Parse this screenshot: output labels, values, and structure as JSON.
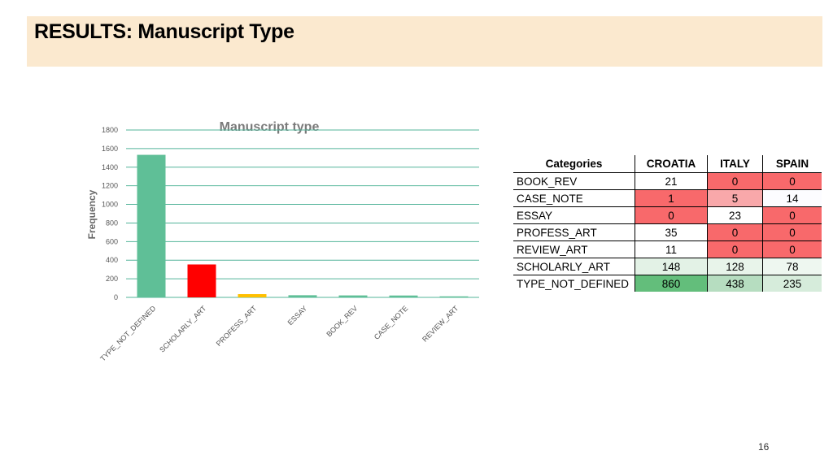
{
  "slide": {
    "title": "RESULTS: Manuscript Type",
    "page_number": "16"
  },
  "chart_data": {
    "type": "bar",
    "title": "Manuscript type",
    "xlabel": "",
    "ylabel": "Frequency",
    "categories": [
      "TYPE_NOT_DEFINED",
      "SCHOLARLY_ART",
      "PROFESS_ART",
      "ESSAY",
      "BOOK_REV",
      "CASE_NOTE",
      "REVIEW_ART"
    ],
    "values": [
      1533,
      354,
      35,
      23,
      21,
      20,
      11
    ],
    "colors": [
      "#5fbf97",
      "#ff0000",
      "#ffc000",
      "#5fbf97",
      "#5fbf97",
      "#5fbf97",
      "#5fbf97"
    ],
    "ylim": [
      0,
      1800
    ],
    "yticks": [
      0,
      200,
      400,
      600,
      800,
      1000,
      1200,
      1400,
      1600,
      1800
    ],
    "grid": true,
    "gridline_color": "#53b49a",
    "legend": "none"
  },
  "table": {
    "headers": [
      "Categories",
      "CROATIA",
      "ITALY",
      "SPAIN"
    ],
    "rows": [
      {
        "label": "BOOK_REV",
        "values": [
          "21",
          "0",
          "0"
        ],
        "colors": [
          "#ffffff",
          "#f8696b",
          "#f8696b"
        ]
      },
      {
        "label": "CASE_NOTE",
        "values": [
          "1",
          "5",
          "14"
        ],
        "colors": [
          "#f8696b",
          "#f9a8aa",
          "#fcfcff"
        ]
      },
      {
        "label": "ESSAY",
        "values": [
          "0",
          "23",
          "0"
        ],
        "colors": [
          "#f8696b",
          "#ffffff",
          "#f8696b"
        ]
      },
      {
        "label": "PROFESS_ART",
        "values": [
          "35",
          "0",
          "0"
        ],
        "colors": [
          "#ffffff",
          "#f8696b",
          "#f8696b"
        ]
      },
      {
        "label": "REVIEW_ART",
        "values": [
          "11",
          "0",
          "0"
        ],
        "colors": [
          "#ffffff",
          "#f8696b",
          "#f8696b"
        ]
      },
      {
        "label": "SCHOLARLY_ART",
        "values": [
          "148",
          "128",
          "78"
        ],
        "colors": [
          "#e3f2e6",
          "#e8f4ea",
          "#eef7f0"
        ]
      },
      {
        "label": "TYPE_NOT_DEFINED",
        "values": [
          "860",
          "438",
          "235"
        ],
        "colors": [
          "#63be7b",
          "#b6ddc0",
          "#d6ecdb"
        ]
      }
    ]
  }
}
